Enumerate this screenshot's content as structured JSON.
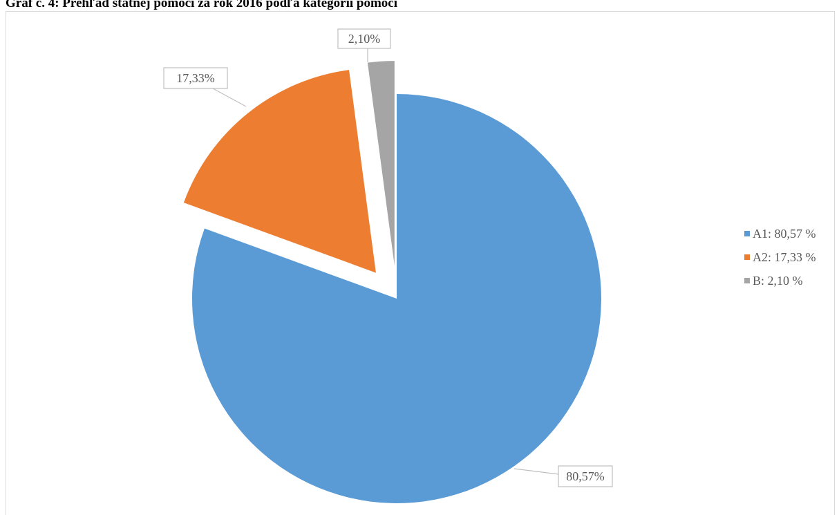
{
  "title": "Graf č. 4: Prehľad štátnej pomoci za rok 2016 podľa kategórií pomoci",
  "chart_data": {
    "type": "pie",
    "categories": [
      "A1",
      "A2",
      "B"
    ],
    "values": [
      80.57,
      17.33,
      2.1
    ],
    "data_labels": [
      "80,57%",
      "17,33%",
      "2,10%"
    ],
    "legend_entries": [
      "A1: 80,57 %",
      "A2: 17,33 %",
      "B: 2,10 %"
    ],
    "colors": [
      "#5b9bd5",
      "#ed7d31",
      "#a5a5a5"
    ],
    "exploded": [
      "A2",
      "B"
    ],
    "legend_position": "right",
    "label_style": "callout"
  }
}
